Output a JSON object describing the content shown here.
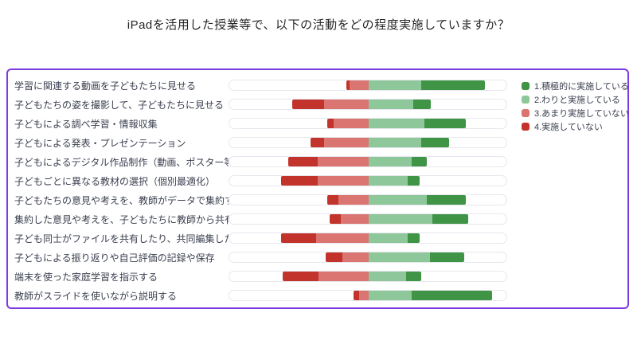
{
  "title": "iPadを活用した授業等で、以下の活動をどの程度実施していますか？",
  "colors": {
    "panel_border": "#7d3be0",
    "green_dark": "#3f9445",
    "green_light": "#8ec79a",
    "red_light": "#da7571",
    "red_dark": "#c2342b",
    "track_border": "#e7e7ef",
    "label_text": "#3a3f4f",
    "title_text": "#262626"
  },
  "legend": [
    {
      "label": "1.積極的に実施している",
      "color": "#3f9445"
    },
    {
      "label": "2.わりと実施している",
      "color": "#8ec79a"
    },
    {
      "label": "3.あまり実施していない",
      "color": "#da7571"
    },
    {
      "label": "4.実施していない",
      "color": "#c2342b"
    }
  ],
  "chart_data": {
    "type": "bar",
    "variant": "diverging-stacked-horizontal",
    "title": "iPadを活用した授業等で、以下の活動をどの程度実施していますか？",
    "unit": "percent",
    "axis_labels_visible": false,
    "legend_position": "top-right",
    "alignment_note": "Each row is a 100% stacked bar centered on the boundary between positive (green) and negative (red) responses at the midpoint of the track.",
    "categories": [
      "学習に関連する動画を子どもたちに見せる",
      "子どもたちの姿を撮影して、子どもたちに見せる",
      "子どもによる調べ学習・情報収集",
      "子どもによる発表・プレゼンテーション",
      "子どもによるデジタル作品制作（動画、ポスター等）",
      "子どもごとに異なる教材の選択（個別最適化）",
      "子どもたちの意見や考えを、教師がデータで集約する",
      "集約した意見や考えを、子どもたちに教師から共有する",
      "子ども同士がファイルを共有したり、共同編集したりする",
      "子どもによる振り返りや自己評価の記録や保存",
      "端末を使った家庭学習を指示する",
      "教師がスライドを使いながら説明する"
    ],
    "series": [
      {
        "name": "1.積極的に実施している",
        "color": "#3f9445",
        "values": [
          46,
          13,
          30,
          20,
          11,
          9,
          28,
          26,
          9,
          25,
          11,
          58
        ]
      },
      {
        "name": "2.わりと実施している",
        "color": "#8ec79a",
        "values": [
          38,
          32,
          40,
          38,
          31,
          28,
          42,
          46,
          28,
          44,
          27,
          31
        ]
      },
      {
        "name": "3.あまり実施していない",
        "color": "#da7571",
        "values": [
          14,
          32,
          25,
          32,
          37,
          37,
          22,
          20,
          38,
          19,
          36,
          7
        ]
      },
      {
        "name": "4.実施していない",
        "color": "#c2342b",
        "values": [
          2,
          23,
          5,
          10,
          21,
          26,
          8,
          8,
          25,
          12,
          26,
          4
        ]
      }
    ]
  }
}
